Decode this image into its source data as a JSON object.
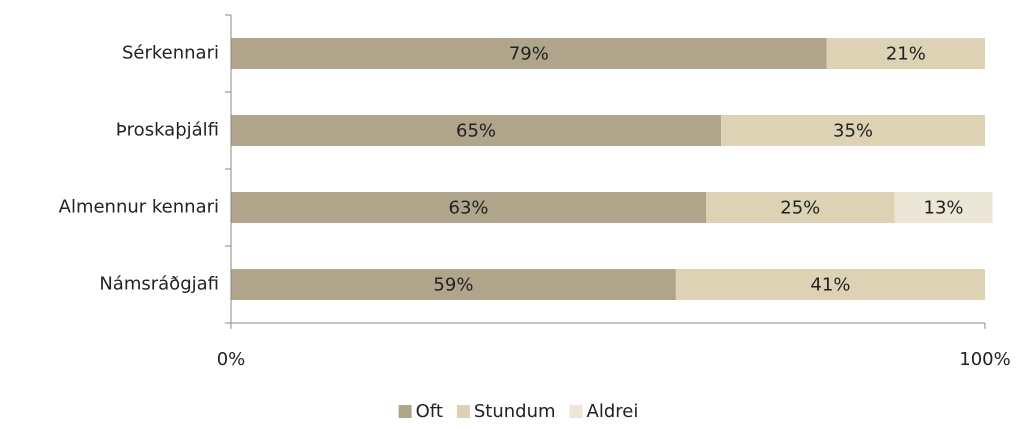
{
  "chart_data": {
    "type": "stacked-barh",
    "categories": [
      "Sérkennari",
      "Þroskaþjálfi",
      "Almennur kennari",
      "Námsráðgjafi"
    ],
    "series": [
      {
        "name": "Oft",
        "color": "#b0a48a",
        "values": [
          79,
          65,
          63,
          59
        ],
        "value_labels": [
          "79%",
          "65%",
          "63%",
          "59%"
        ]
      },
      {
        "name": "Stundum",
        "color": "#ddd2b3",
        "values": [
          21,
          35,
          25,
          41
        ],
        "value_labels": [
          "21%",
          "35%",
          "25%",
          "41%"
        ]
      },
      {
        "name": "Aldrei",
        "color": "#ece6d6",
        "values": [
          null,
          null,
          13,
          null
        ],
        "value_labels": [
          null,
          null,
          "13%",
          null
        ]
      }
    ],
    "xlim": [
      0,
      100
    ],
    "xticks": [
      {
        "value": 0,
        "label": "0%"
      },
      {
        "value": 100,
        "label": "100%"
      }
    ],
    "legend": "bottom"
  }
}
